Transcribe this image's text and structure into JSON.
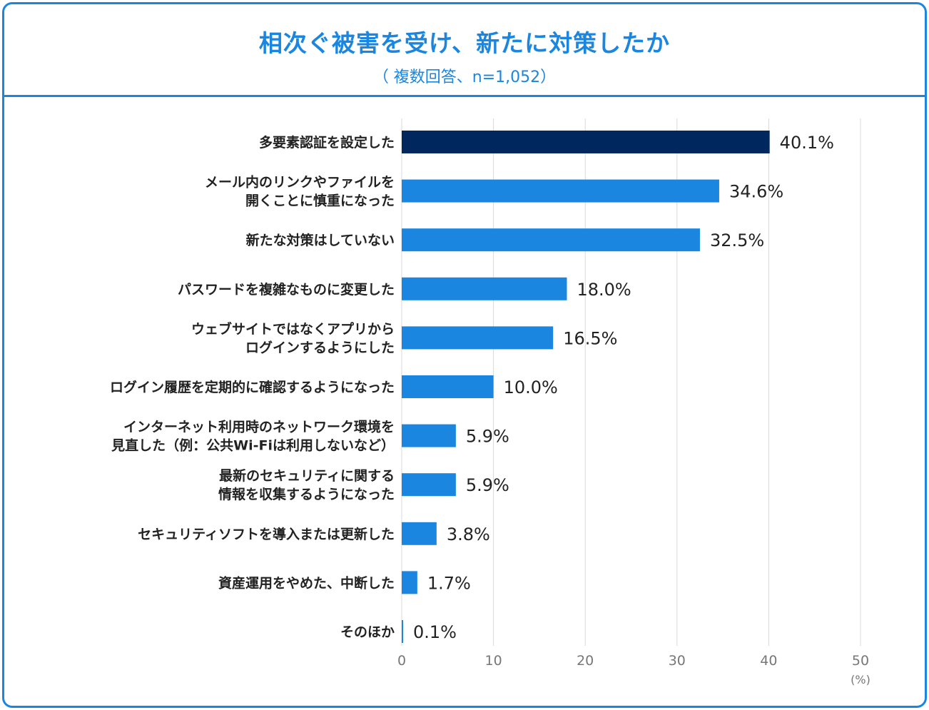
{
  "header": {
    "title": "相次ぐ被害を受け、新たに対策したか",
    "subtitle": "（ 複数回答、n=1,052）"
  },
  "colors": {
    "accent": "#1b86e0",
    "bar": "#1b86e0",
    "bar_highlight": "#00275e",
    "grid": "#d9d9d9"
  },
  "chart_data": {
    "type": "bar",
    "orientation": "horizontal",
    "title": "相次ぐ被害を受け、新たに対策したか",
    "subtitle": "（ 複数回答、n=1,052）",
    "categories": [
      [
        "多要素認証を設定した"
      ],
      [
        "メール内のリンクやファイルを",
        "開くことに慎重になった"
      ],
      [
        "新たな対策はしていない"
      ],
      [
        "パスワードを複雑なものに変更した"
      ],
      [
        "ウェブサイトではなくアプリから",
        "ログインするようにした"
      ],
      [
        "ログイン履歴を定期的に確認するようになった"
      ],
      [
        "インターネット利用時のネットワーク環境を",
        "見直した（例：公共Wi-Fiは利用しないなど）"
      ],
      [
        "最新のセキュリティに関する",
        "情報を収集するようになった"
      ],
      [
        "セキュリティソフトを導入または更新した"
      ],
      [
        "資産運用をやめた、中断した"
      ],
      [
        "そのほか"
      ]
    ],
    "values": [
      40.1,
      34.6,
      32.5,
      18.0,
      16.5,
      10.0,
      5.9,
      5.9,
      3.8,
      1.7,
      0.1
    ],
    "value_labels": [
      "40.1%",
      "34.6%",
      "32.5%",
      "18.0%",
      "16.5%",
      "10.0%",
      "5.9%",
      "5.9%",
      "3.8%",
      "1.7%",
      "0.1%"
    ],
    "highlight_index": 0,
    "xlim": [
      0,
      50
    ],
    "xticks": [
      0,
      10,
      20,
      30,
      40,
      50
    ],
    "xtick_labels": [
      "0",
      "10",
      "20",
      "30",
      "40",
      "50"
    ],
    "unit_label": "(%)",
    "grid": true
  }
}
